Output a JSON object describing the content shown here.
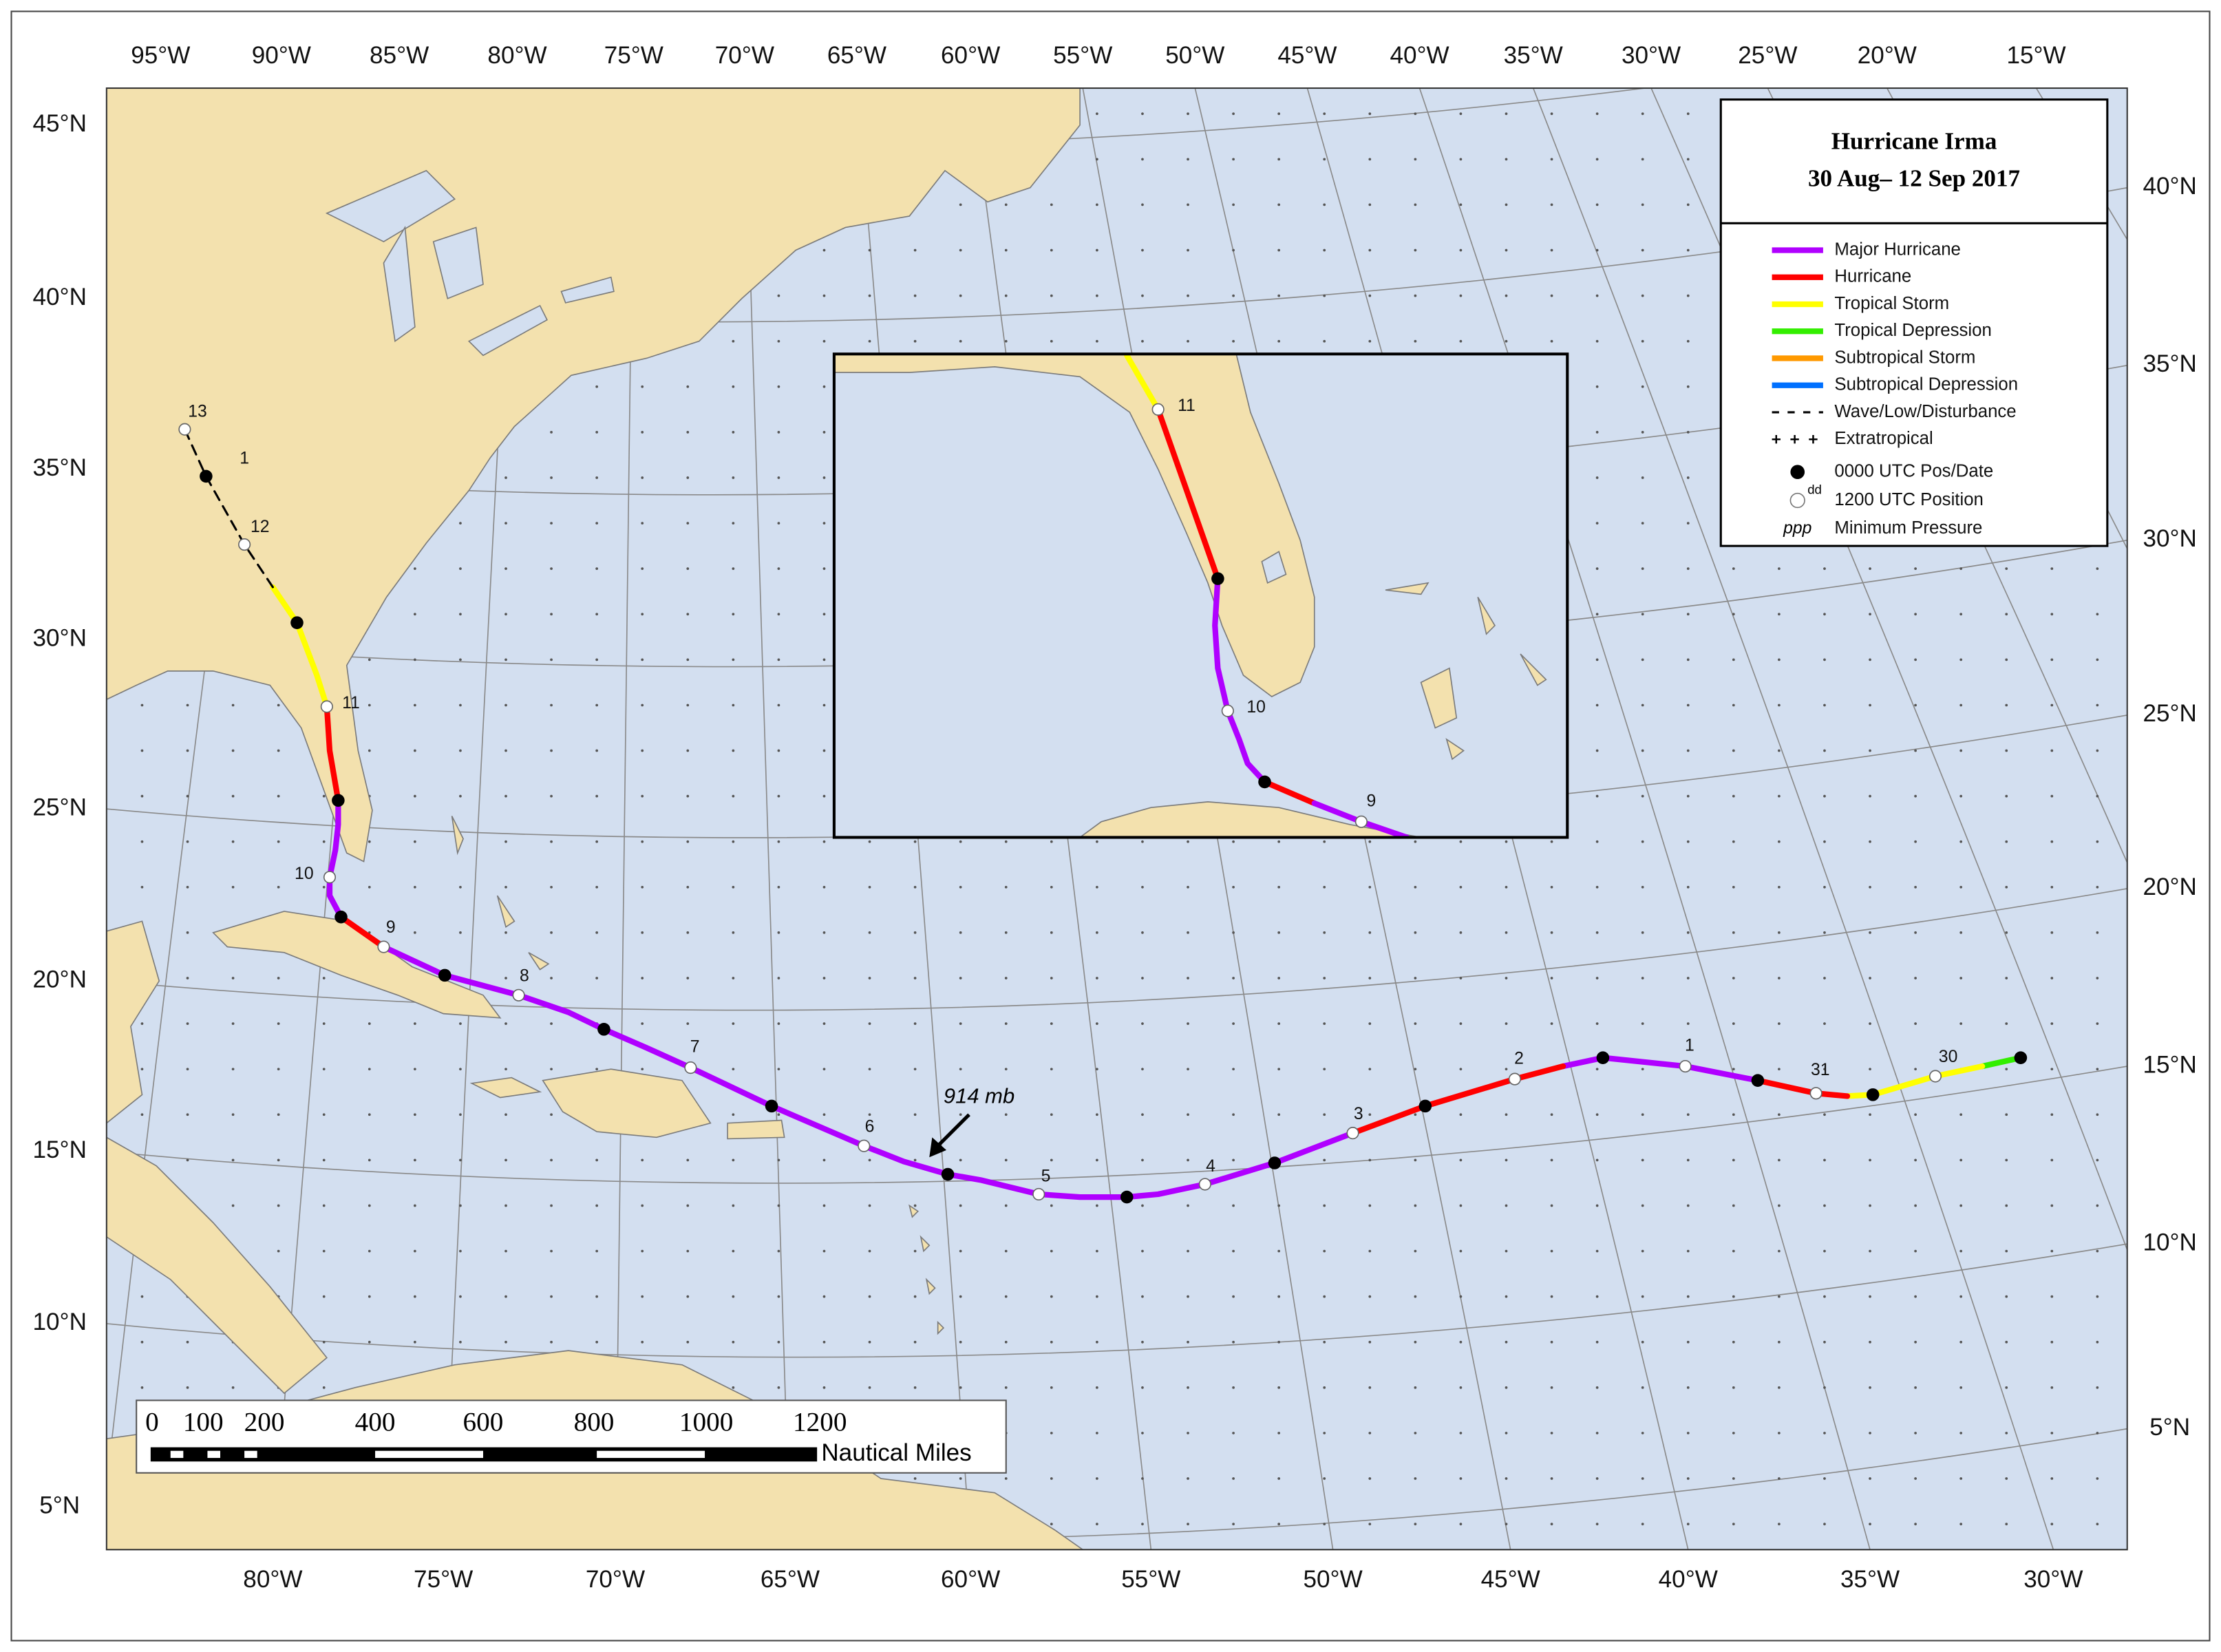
{
  "map": {
    "title": "Hurricane Irma",
    "subtitle": "30 Aug– 12 Sep 2017",
    "longitude_labels_top": [
      "95°W",
      "90°W",
      "85°W",
      "80°W",
      "75°W",
      "70°W",
      "65°W",
      "60°W",
      "55°W",
      "50°W",
      "45°W",
      "40°W",
      "35°W",
      "30°W",
      "25°W",
      "20°W",
      "15°W"
    ],
    "longitude_labels_bottom": [
      "80°W",
      "75°W",
      "70°W",
      "65°W",
      "60°W",
      "55°W",
      "50°W",
      "45°W",
      "40°W",
      "35°W",
      "30°W"
    ],
    "latitude_labels_left": [
      "45°N",
      "40°N",
      "35°N",
      "30°N",
      "25°N",
      "20°N",
      "15°N",
      "10°N",
      "5°N"
    ],
    "latitude_labels_right": [
      "40°N",
      "35°N",
      "30°N",
      "25°N",
      "20°N",
      "15°N",
      "10°N",
      "5°N"
    ],
    "legend": {
      "items": [
        {
          "label": "Major Hurricane",
          "symbol": "line",
          "color": "#b000ff"
        },
        {
          "label": "Hurricane",
          "symbol": "line",
          "color": "#ff0000"
        },
        {
          "label": "Tropical Storm",
          "symbol": "line",
          "color": "#ffff00"
        },
        {
          "label": "Tropical Depression",
          "symbol": "line",
          "color": "#33ee00"
        },
        {
          "label": "Subtropical Storm",
          "symbol": "line",
          "color": "#ff9900"
        },
        {
          "label": "Subtropical Depression",
          "symbol": "line",
          "color": "#0070ff"
        },
        {
          "label": "Wave/Low/Disturbance",
          "symbol": "dashed",
          "color": "#000000"
        },
        {
          "label": "Extratropical",
          "symbol": "plus",
          "color": "#000000"
        },
        {
          "label": "0000 UTC Pos/Date",
          "symbol": "dot-black",
          "color": "#000000"
        },
        {
          "label": "1200 UTC Position",
          "symbol": "dot-white",
          "symbol_text": "dd",
          "color": "#ffffff"
        },
        {
          "label": "Minimum Pressure",
          "symbol": "text",
          "symbol_text": "ppp",
          "color": "#000000"
        }
      ]
    },
    "track_labels": [
      "30",
      "31",
      "1",
      "2",
      "3",
      "4",
      "5",
      "6",
      "7",
      "8",
      "9",
      "10",
      "11",
      "12",
      "13"
    ],
    "extra_label": "1",
    "inset_labels": [
      "11",
      "10",
      "9"
    ],
    "pressure_annotation": "914 mb",
    "scale_labels": [
      "0",
      "100",
      "200",
      "400",
      "600",
      "800",
      "1000",
      "1200"
    ],
    "scale_unit": "Nautical Miles"
  }
}
